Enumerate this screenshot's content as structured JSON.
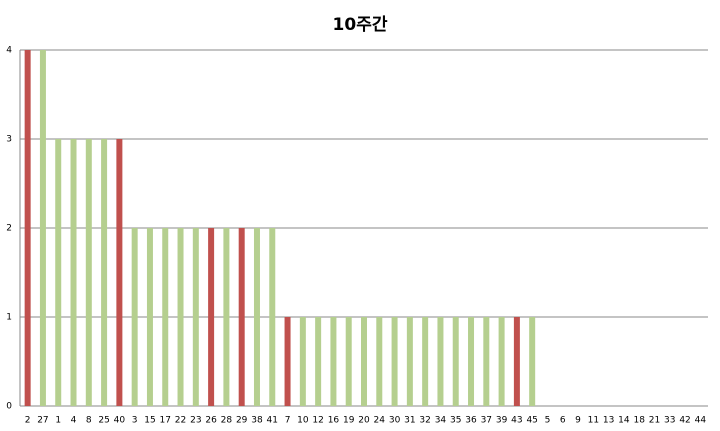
{
  "chart_data": {
    "type": "bar",
    "title": "10주간",
    "categories": [
      "2",
      "27",
      "1",
      "4",
      "8",
      "25",
      "40",
      "3",
      "15",
      "17",
      "22",
      "23",
      "26",
      "28",
      "29",
      "38",
      "41",
      "7",
      "10",
      "12",
      "16",
      "19",
      "20",
      "24",
      "30",
      "31",
      "32",
      "34",
      "35",
      "36",
      "37",
      "39",
      "43",
      "45",
      "5",
      "6",
      "9",
      "11",
      "13",
      "14",
      "18",
      "21",
      "33",
      "42",
      "44"
    ],
    "values": [
      4,
      4,
      3,
      3,
      3,
      3,
      3,
      2,
      2,
      2,
      2,
      2,
      2,
      2,
      2,
      2,
      2,
      1,
      1,
      1,
      1,
      1,
      1,
      1,
      1,
      1,
      1,
      1,
      1,
      1,
      1,
      1,
      1,
      1,
      0,
      0,
      0,
      0,
      0,
      0,
      0,
      0,
      0,
      0,
      0
    ],
    "colors": [
      "#c0504d",
      "#b5cf8f",
      "#b5cf8f",
      "#b5cf8f",
      "#b5cf8f",
      "#b5cf8f",
      "#c0504d",
      "#b5cf8f",
      "#b5cf8f",
      "#b5cf8f",
      "#b5cf8f",
      "#b5cf8f",
      "#c0504d",
      "#b5cf8f",
      "#c0504d",
      "#b5cf8f",
      "#b5cf8f",
      "#c0504d",
      "#b5cf8f",
      "#b5cf8f",
      "#b5cf8f",
      "#b5cf8f",
      "#b5cf8f",
      "#b5cf8f",
      "#b5cf8f",
      "#b5cf8f",
      "#b5cf8f",
      "#b5cf8f",
      "#b5cf8f",
      "#b5cf8f",
      "#b5cf8f",
      "#b5cf8f",
      "#c0504d",
      "#b5cf8f",
      "#b5cf8f",
      "#b5cf8f",
      "#b5cf8f",
      "#b5cf8f",
      "#b5cf8f",
      "#b5cf8f",
      "#b5cf8f",
      "#b5cf8f",
      "#b5cf8f",
      "#b5cf8f",
      "#b5cf8f"
    ],
    "ylim": [
      0,
      4
    ],
    "yticks": [
      0,
      1,
      2,
      3,
      4
    ],
    "grid": true
  }
}
